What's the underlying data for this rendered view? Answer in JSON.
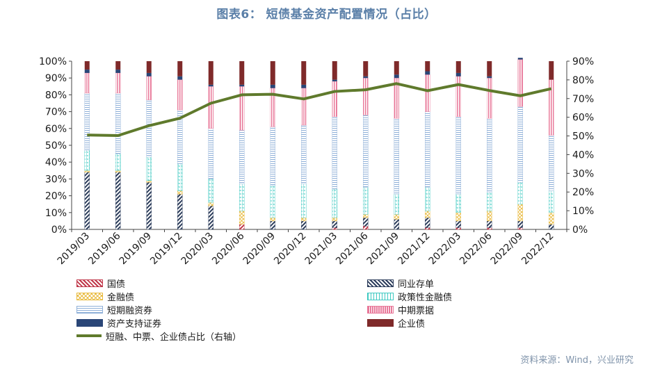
{
  "title": "图表6： 短债基金资产配置情况（占比）",
  "source": "资料来源：Wind，兴业研究",
  "chart_data": {
    "type": "bar",
    "stacked": true,
    "categories": [
      "2019/03",
      "2019/06",
      "2019/09",
      "2019/12",
      "2020/03",
      "2020/06",
      "2020/09",
      "2020/12",
      "2021/03",
      "2021/06",
      "2021/09",
      "2021/12",
      "2022/03",
      "2022/06",
      "2022/09",
      "2022/12"
    ],
    "y_left": {
      "min": 0,
      "max": 100,
      "ticks": [
        "0%",
        "10%",
        "20%",
        "30%",
        "40%",
        "50%",
        "60%",
        "70%",
        "80%",
        "90%",
        "100%"
      ]
    },
    "y_right": {
      "min": 0,
      "max": 90,
      "ticks": [
        "0%",
        "10%",
        "20%",
        "30%",
        "40%",
        "50%",
        "60%",
        "70%",
        "80%",
        "90%"
      ]
    },
    "series": [
      {
        "name": "国债",
        "color": "#c0384a",
        "pattern": "diag-red",
        "values": [
          0,
          0,
          0,
          0,
          0,
          3,
          0,
          0,
          1,
          2,
          0,
          1,
          1,
          1,
          1,
          0
        ]
      },
      {
        "name": "同业存单",
        "color": "#2d3e5c",
        "pattern": "diag-navy",
        "values": [
          34,
          34,
          28,
          21,
          14,
          0,
          5,
          5,
          4,
          5,
          6,
          6,
          4,
          4,
          4,
          3
        ]
      },
      {
        "name": "金融债",
        "color": "#e8b93a",
        "pattern": "cross-yellow",
        "values": [
          1,
          1,
          1,
          2,
          2,
          8,
          2,
          2,
          2,
          2,
          3,
          4,
          5,
          6,
          10,
          7
        ]
      },
      {
        "name": "政策性金融债",
        "color": "#3ec9c1",
        "pattern": "box-teal",
        "values": [
          12,
          10,
          14,
          16,
          14,
          16,
          19,
          20,
          17,
          16,
          12,
          14,
          11,
          11,
          13,
          13
        ]
      },
      {
        "name": "短期融资券",
        "color": "#8fb0d8",
        "pattern": "hline-blue",
        "values": [
          34,
          36,
          34,
          32,
          30,
          32,
          35,
          35,
          43,
          43,
          45,
          45,
          46,
          44,
          45,
          33
        ]
      },
      {
        "name": "中期票据",
        "color": "#e8799a",
        "pattern": "vline-pink",
        "values": [
          12,
          12,
          14,
          18,
          25,
          26,
          23,
          22,
          21,
          22,
          24,
          22,
          24,
          24,
          28,
          33
        ]
      },
      {
        "name": "资产支持证券",
        "color": "#2a4677",
        "pattern": "solid",
        "values": [
          2,
          2,
          2,
          2,
          1,
          1,
          2,
          2,
          1,
          1,
          2,
          2,
          2,
          1,
          1,
          0
        ]
      },
      {
        "name": "企业债",
        "color": "#7f2a2a",
        "pattern": "solid",
        "values": [
          5,
          5,
          7,
          9,
          14,
          14,
          14,
          14,
          11,
          9,
          8,
          6,
          7,
          9,
          0,
          11
        ]
      }
    ],
    "line": {
      "name": "短融、中票、企业债占比（右轴）",
      "color": "#5f7a2c",
      "axis": "right",
      "values": [
        50.5,
        50.2,
        55.5,
        59.5,
        67.5,
        72,
        72.3,
        69.8,
        73.8,
        74.7,
        78,
        74.2,
        77.5,
        74.3,
        71.5,
        75.3
      ]
    }
  }
}
